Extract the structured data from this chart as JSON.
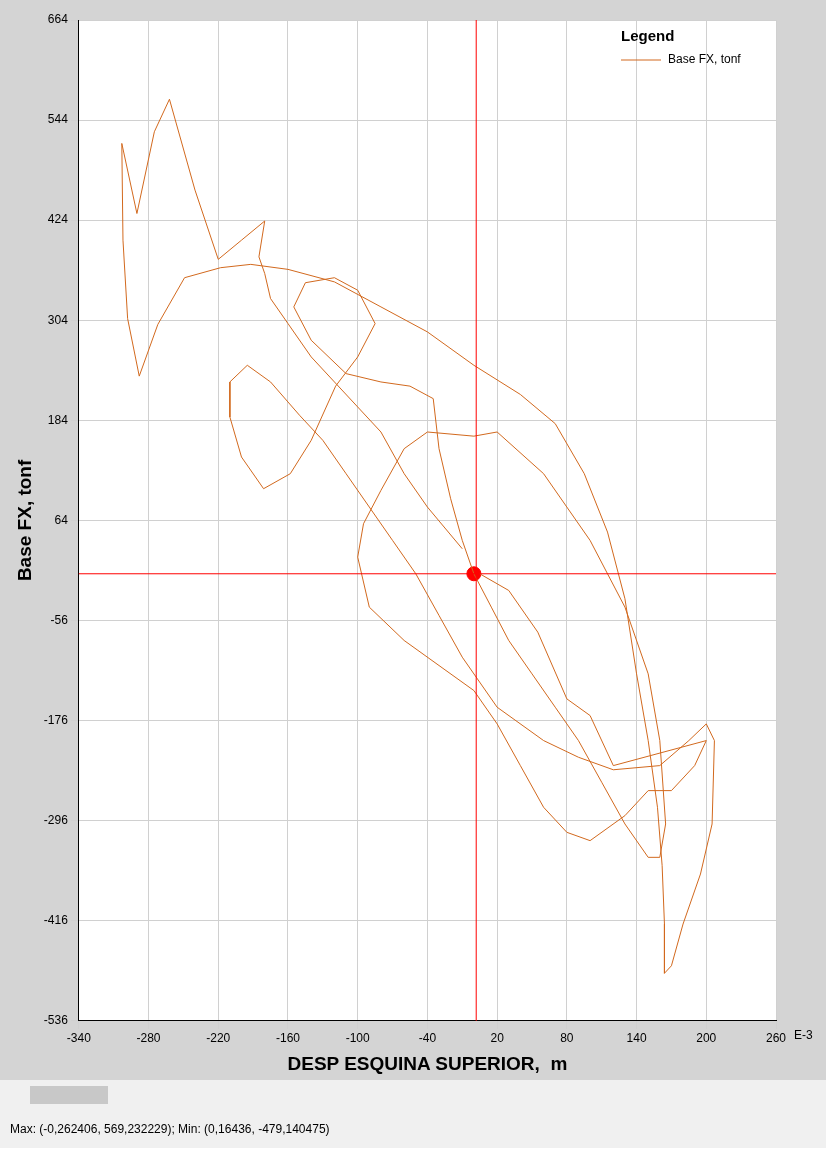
{
  "chart_data": {
    "type": "line",
    "xlabel": "DESP ESQUINA SUPERIOR,  m",
    "ylabel": "Base FX, tonf",
    "legend_title": "Legend",
    "legend": "top right",
    "grid": true,
    "marker": "none",
    "xlim": [
      -340,
      260
    ],
    "xticks": [
      -340,
      -280,
      -220,
      -160,
      -100,
      -40,
      20,
      80,
      140,
      200,
      260
    ],
    "ylim": [
      -536,
      664
    ],
    "yticks": [
      -536,
      -416,
      -296,
      -176,
      -56,
      64,
      184,
      304,
      424,
      544,
      664
    ],
    "ref_lines": [
      {
        "axis": "x",
        "value": 2,
        "color": "#ff0000"
      },
      {
        "axis": "y",
        "value": 0,
        "color": "#ff0000"
      }
    ],
    "annotations": [
      "E-3",
      "Max: (-0,262406, 569,232229);  Min: (0,16436, -479,140475)"
    ],
    "series": [
      {
        "name": "Base FX, tonf",
        "color": "#d2691e",
        "x": [
          -10,
          -40,
          -60,
          -80,
          -100,
          -120,
          -140,
          -160,
          -175,
          -180,
          -185,
          -180,
          -200,
          -220,
          -240,
          -262,
          -275,
          -290,
          -303,
          -302,
          -298,
          -288,
          -272,
          -249,
          -218,
          -192,
          -160,
          -120,
          -80,
          -40,
          0,
          40,
          70,
          95,
          115,
          130,
          140,
          150,
          158,
          162,
          164,
          164,
          170,
          180,
          195,
          205,
          207,
          200,
          185,
          160,
          120,
          90,
          60,
          20,
          -10,
          -30,
          -50,
          -70,
          -90,
          -110,
          -130,
          -150,
          -175,
          -195,
          -210,
          -210,
          -200,
          -181,
          -158,
          -140,
          -119,
          -100,
          -85,
          -100,
          -120,
          -145,
          -155,
          -140,
          -110,
          -80,
          -55,
          -35,
          -30,
          -20,
          -10,
          0,
          15,
          30,
          50,
          70,
          90,
          110,
          130,
          150,
          160,
          165,
          160,
          150,
          130,
          100,
          60,
          20,
          0,
          -40,
          -60,
          -80,
          -95,
          -100,
          -90,
          -60,
          -30,
          0,
          20,
          40,
          60,
          80,
          100,
          130,
          150,
          170,
          190,
          200,
          120,
          100,
          80,
          55,
          30,
          5
        ],
        "values": [
          30,
          80,
          120,
          170,
          200,
          230,
          260,
          300,
          330,
          360,
          380,
          423,
          400,
          377,
          460,
          569,
          530,
          432,
          516,
          400,
          306,
          237,
          299,
          355,
          367,
          371,
          365,
          350,
          320,
          290,
          250,
          215,
          180,
          120,
          50,
          -30,
          -120,
          -200,
          -280,
          -350,
          -420,
          -479,
          -470,
          -420,
          -360,
          -300,
          -200,
          -180,
          -200,
          -230,
          -235,
          -220,
          -200,
          -160,
          -100,
          -50,
          0,
          40,
          80,
          120,
          160,
          190,
          230,
          250,
          230,
          188,
          140,
          102,
          120,
          160,
          225,
          260,
          300,
          340,
          355,
          349,
          320,
          280,
          240,
          230,
          225,
          210,
          150,
          90,
          40,
          0,
          -40,
          -80,
          -120,
          -160,
          -200,
          -250,
          -300,
          -340,
          -340,
          -300,
          -200,
          -120,
          -40,
          40,
          120,
          170,
          165,
          170,
          150,
          100,
          60,
          20,
          -40,
          -80,
          -110,
          -140,
          -180,
          -230,
          -280,
          -310,
          -320,
          -290,
          -260,
          -260,
          -230,
          -200,
          -230,
          -170,
          -150,
          -70,
          -20,
          0
        ]
      },
      {
        "type": "scatter",
        "color": "#ff0000",
        "marker": "circle",
        "x": [
          0
        ],
        "values": [
          0
        ]
      }
    ]
  }
}
